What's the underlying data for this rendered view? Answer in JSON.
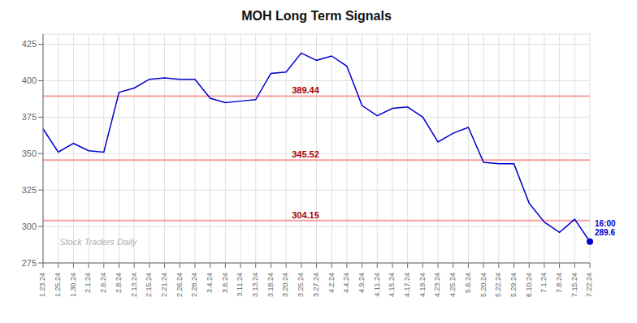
{
  "chart_data": {
    "type": "line",
    "title": "MOH Long Term Signals",
    "categories": [
      "1.23.24",
      "1.25.24",
      "1.30.24",
      "2.1.24",
      "2.6.24",
      "2.8.24",
      "2.13.24",
      "2.15.24",
      "2.21.24",
      "2.26.24",
      "2.28.24",
      "3.4.24",
      "3.6.24",
      "3.11.24",
      "3.13.24",
      "3.18.24",
      "3.20.24",
      "3.25.24",
      "3.27.24",
      "4.2.24",
      "4.4.24",
      "4.9.24",
      "4.11.24",
      "4.15.24",
      "4.17.24",
      "4.19.24",
      "4.23.24",
      "4.25.24",
      "5.6.24",
      "5.20.24",
      "5.22.24",
      "5.29.24",
      "6.10.24",
      "7.1.24",
      "7.8.24",
      "7.15.24",
      "7.22.24"
    ],
    "values": [
      367,
      351,
      357,
      352,
      351,
      392,
      395,
      401,
      402,
      401,
      401,
      388,
      385,
      386,
      387,
      405,
      406,
      419,
      414,
      417,
      410,
      383,
      376,
      381,
      382,
      375,
      358,
      364,
      368,
      344,
      343,
      343,
      316,
      303,
      296,
      305,
      289.6
    ],
    "color": "#0000cc",
    "ylim": [
      275,
      432
    ],
    "yticks": [
      275,
      300,
      325,
      350,
      375,
      400,
      425
    ],
    "grid": true,
    "reference_lines": [
      {
        "value": 389.44,
        "label": "389.44"
      },
      {
        "value": 345.52,
        "label": "345.52"
      },
      {
        "value": 304.15,
        "label": "304.15"
      }
    ],
    "reference_line_color": "#f4a0a0",
    "reference_label_color": "#aa0000",
    "end_label": {
      "text": [
        "16:00",
        "289.6"
      ],
      "color": "#0000cc"
    },
    "watermark": "Stock Traders Daily"
  }
}
